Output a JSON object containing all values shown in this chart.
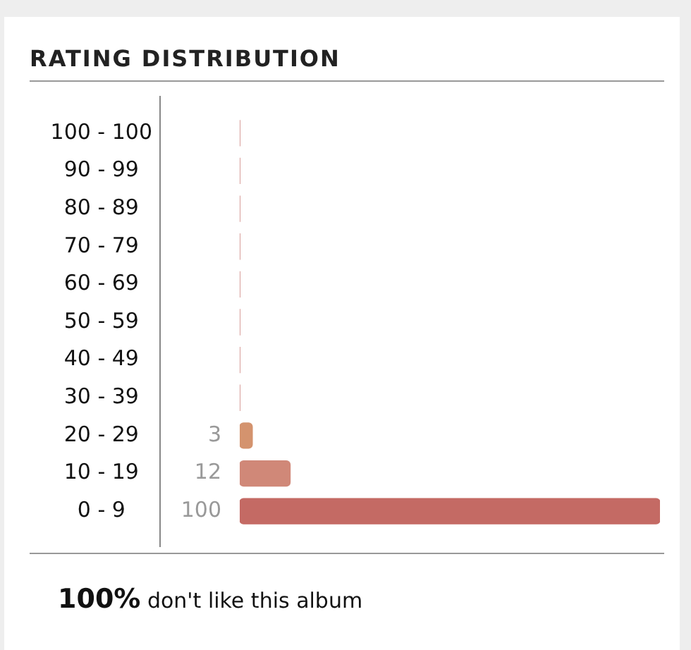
{
  "chart_data": {
    "type": "bar",
    "orientation": "horizontal",
    "title": "RATING DISTRIBUTION",
    "categories": [
      "100 - 100",
      "90 - 99",
      "80 - 89",
      "70 - 79",
      "60 - 69",
      "50 - 59",
      "40 - 49",
      "30 - 39",
      "20 - 29",
      "10 - 19",
      "0 - 9"
    ],
    "values": [
      0,
      0,
      0,
      0,
      0,
      0,
      0,
      0,
      3,
      12,
      100
    ],
    "colors": [
      "#c46a64",
      "#c46a64",
      "#c46a64",
      "#c46a64",
      "#c46a64",
      "#c46a64",
      "#c46a64",
      "#c46a64",
      "#d4936e",
      "#d08878",
      "#c46a64"
    ],
    "value_labels": [
      null,
      null,
      null,
      null,
      null,
      null,
      null,
      null,
      "3",
      "12",
      "100"
    ],
    "annotations": [
      "100% don't like this album"
    ],
    "grid": false,
    "legend": false
  }
}
